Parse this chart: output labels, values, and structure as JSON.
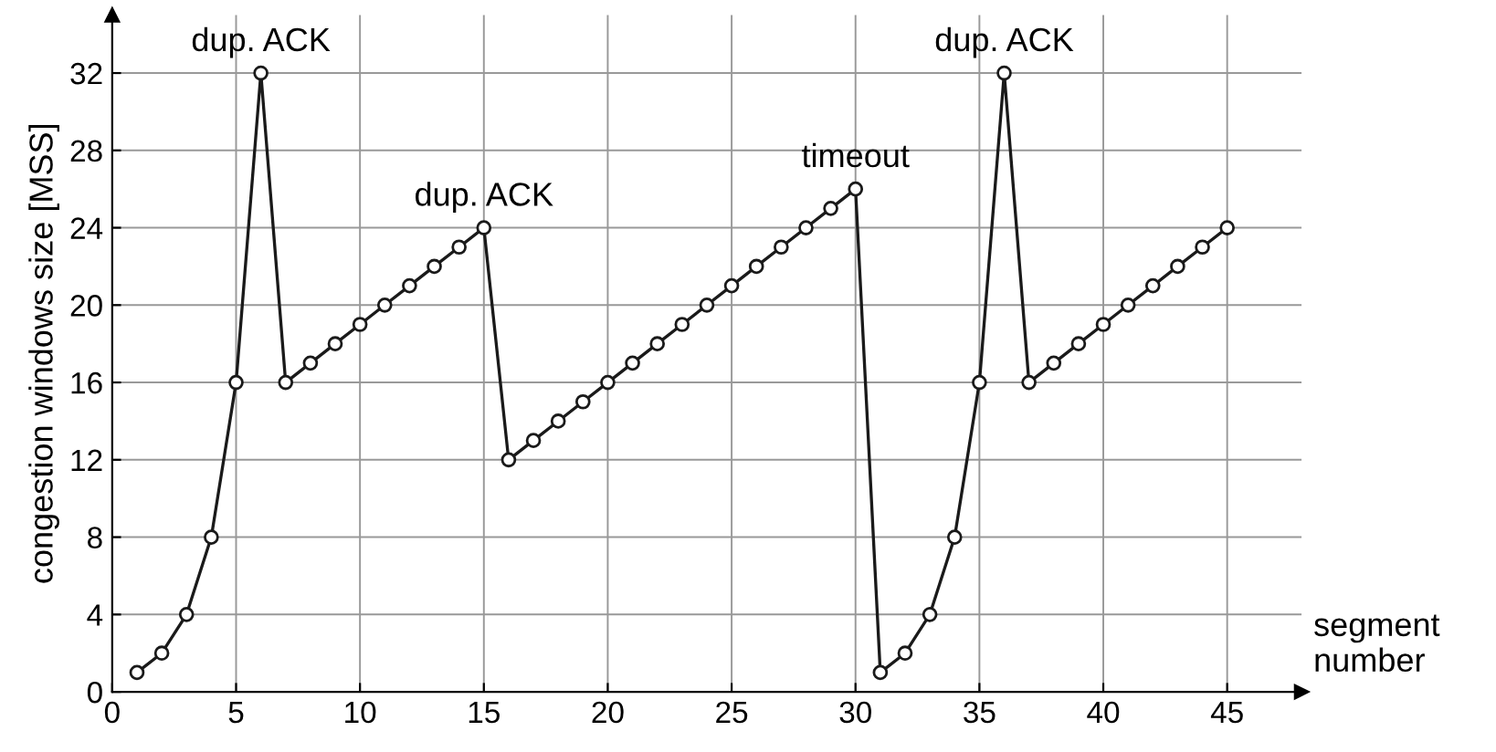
{
  "chart_data": {
    "type": "line",
    "xlabel": "segment number",
    "ylabel": "congestion windows size [MSS]",
    "x": [
      1,
      2,
      3,
      4,
      5,
      6,
      7,
      8,
      9,
      10,
      11,
      12,
      13,
      14,
      15,
      16,
      17,
      18,
      19,
      20,
      21,
      22,
      23,
      24,
      25,
      26,
      27,
      28,
      29,
      30,
      31,
      32,
      33,
      34,
      35,
      36,
      37,
      38,
      39,
      40,
      41,
      42,
      43,
      44,
      45
    ],
    "series": [
      {
        "color": "#1a1a1a",
        "values": [
          1,
          2,
          4,
          8,
          16,
          32,
          16,
          17,
          18,
          19,
          20,
          21,
          22,
          23,
          24,
          12,
          13,
          14,
          15,
          16,
          17,
          18,
          19,
          20,
          21,
          22,
          23,
          24,
          25,
          26,
          1,
          2,
          4,
          8,
          16,
          32,
          16,
          17,
          18,
          19,
          20,
          21,
          22,
          23,
          24
        ]
      }
    ],
    "annotations": [
      {
        "text": "dup. ACK",
        "x": 6,
        "y": 32
      },
      {
        "text": "dup. ACK",
        "x": 15,
        "y": 24
      },
      {
        "text": "timeout",
        "x": 30,
        "y": 26
      },
      {
        "text": "dup. ACK",
        "x": 36,
        "y": 32
      }
    ],
    "xlim": [
      0,
      48
    ],
    "ylim": [
      0,
      35
    ],
    "xticks": [
      0,
      5,
      10,
      15,
      20,
      25,
      30,
      35,
      40,
      45
    ],
    "yticks": [
      0,
      4,
      8,
      12,
      16,
      20,
      24,
      28,
      32
    ],
    "grid": true,
    "marker": "circle",
    "line_style": "solid"
  }
}
